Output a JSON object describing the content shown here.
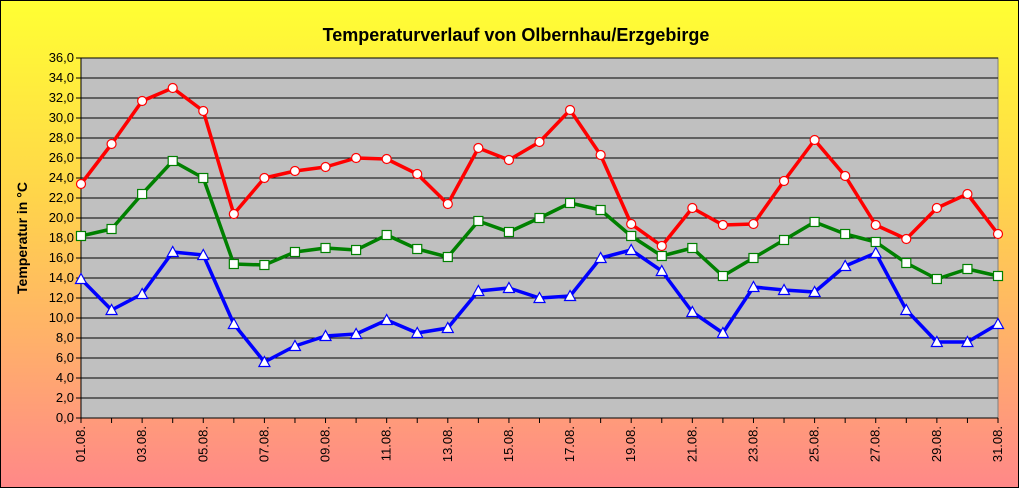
{
  "chart_data": {
    "type": "line",
    "title": "Temperaturverlauf von Olbernhau/Erzgebirge",
    "ylabel": "Temperatur in  °C",
    "xlabel": "",
    "ylim": [
      0,
      36
    ],
    "ytick_step": 2,
    "ytick_labels": [
      "0,0",
      "2,0",
      "4,0",
      "6,0",
      "8,0",
      "10,0",
      "12,0",
      "14,0",
      "16,0",
      "18,0",
      "20,0",
      "22,0",
      "24,0",
      "26,0",
      "28,0",
      "30,0",
      "32,0",
      "34,0",
      "36,0"
    ],
    "grid": true,
    "legend": "none",
    "categories": [
      "01.08.",
      "02.08.",
      "03.08.",
      "04.08.",
      "05.08.",
      "06.08.",
      "07.08.",
      "08.08.",
      "09.08.",
      "10.08.",
      "11.08.",
      "12.08.",
      "13.08.",
      "14.08.",
      "15.08.",
      "16.08.",
      "17.08.",
      "18.08.",
      "19.08.",
      "20.08.",
      "21.08.",
      "22.08.",
      "23.08.",
      "24.08.",
      "25.08.",
      "26.08.",
      "27.08.",
      "28.08.",
      "29.08.",
      "30.08.",
      "31.08."
    ],
    "xtick_labels": [
      "01.08.",
      "03.08.",
      "05.08.",
      "07.08.",
      "09.08.",
      "11.08.",
      "13.08.",
      "15.08.",
      "17.08.",
      "19.08.",
      "21.08.",
      "23.08.",
      "25.08.",
      "27.08.",
      "29.08.",
      "31.08."
    ],
    "series": [
      {
        "color": "#ff0000",
        "marker": "circle",
        "values": [
          23.4,
          27.4,
          31.7,
          33.0,
          30.7,
          20.4,
          24.0,
          24.7,
          25.1,
          26.0,
          25.9,
          24.4,
          21.4,
          27.0,
          25.8,
          27.6,
          30.8,
          26.3,
          19.4,
          17.2,
          21.0,
          19.3,
          19.4,
          23.7,
          27.8,
          24.2,
          19.3,
          17.9,
          21.0,
          22.4,
          18.4
        ]
      },
      {
        "color": "#008000",
        "marker": "square",
        "values": [
          18.2,
          18.9,
          22.4,
          25.7,
          24.0,
          15.4,
          15.3,
          16.6,
          17.0,
          16.8,
          18.3,
          16.9,
          16.1,
          19.7,
          18.6,
          20.0,
          21.5,
          20.8,
          18.2,
          16.2,
          17.0,
          14.2,
          16.0,
          17.8,
          19.6,
          18.4,
          17.6,
          15.5,
          13.9,
          14.9,
          14.2
        ]
      },
      {
        "color": "#0000ff",
        "marker": "triangle",
        "values": [
          13.9,
          10.8,
          12.4,
          16.6,
          16.3,
          9.4,
          5.6,
          7.2,
          8.2,
          8.4,
          9.8,
          8.5,
          9.0,
          12.7,
          13.0,
          12.0,
          12.2,
          16.0,
          16.8,
          14.7,
          10.6,
          8.5,
          13.1,
          12.8,
          12.6,
          15.2,
          16.5,
          10.8,
          7.6,
          7.6,
          9.4
        ]
      }
    ]
  }
}
